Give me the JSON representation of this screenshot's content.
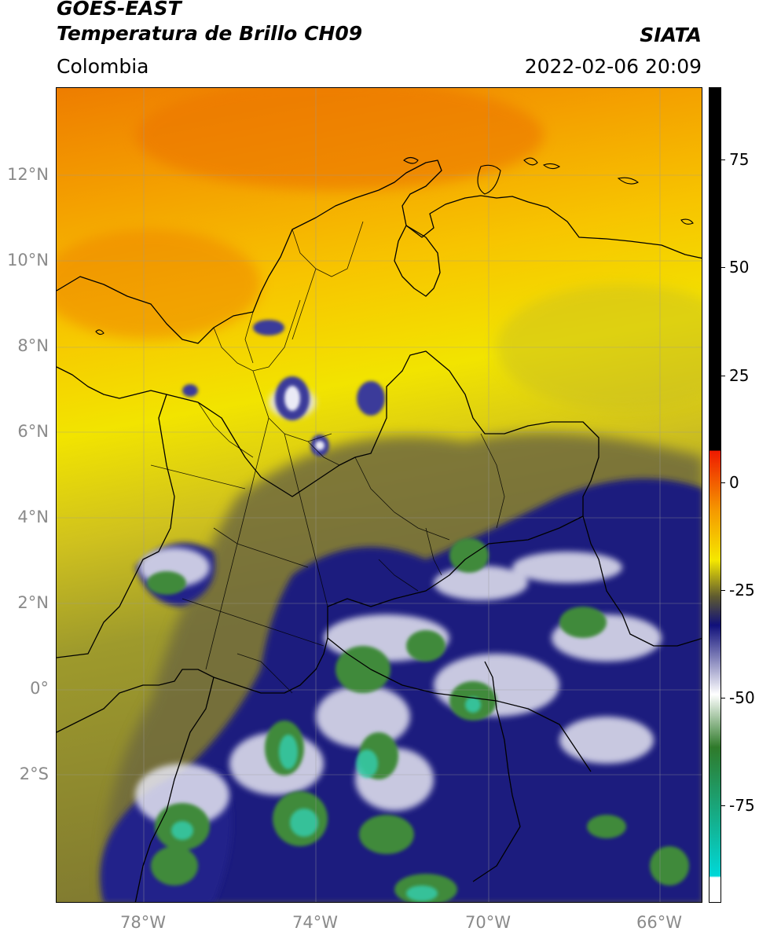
{
  "header": {
    "satellite": "GOES-EAST",
    "product": "Temperatura de Brillo CH09",
    "organization": "SIATA",
    "region": "Colombia",
    "datetime": "2022-02-06 20:09"
  },
  "map": {
    "lat_labels": [
      "12°N",
      "10°N",
      "8°N",
      "6°N",
      "4°N",
      "2°N",
      "0°",
      "2°S"
    ],
    "lon_labels": [
      "78°W",
      "74°W",
      "70°W",
      "66°W"
    ],
    "colors": {
      "warm": "#f08a00",
      "yellow": "#f2e600",
      "olive": "#6e6c3a",
      "navy": "#1a1a7a",
      "white": "#f4f4f8",
      "green": "#3f8a3a",
      "teal": "#2ec8a8",
      "border": "#000000"
    }
  },
  "colorbar": {
    "labels": [
      "75",
      "50",
      "25",
      "0",
      "-25",
      "-50",
      "-75"
    ],
    "colors": {
      "top": "#000000",
      "red": "#ee1a00",
      "orange": "#f59a00",
      "yellow": "#f5e800",
      "olive": "#5e5a30",
      "navy": "#10107a",
      "white": "#ffffff",
      "green": "#2f7a2a",
      "cyan": "#00d8d8"
    }
  }
}
